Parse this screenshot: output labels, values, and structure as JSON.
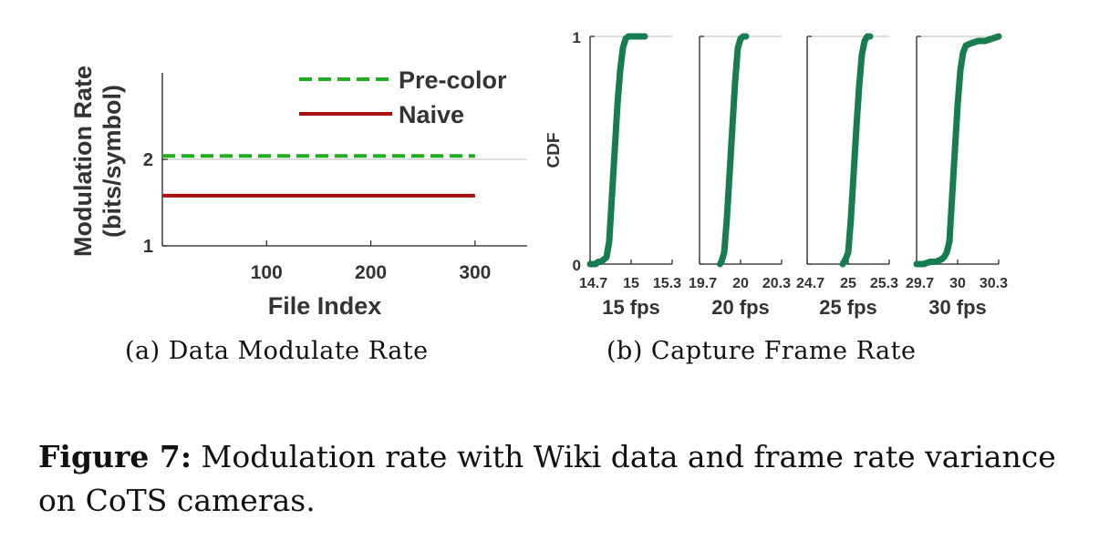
{
  "chart_data": [
    {
      "type": "line",
      "xlabel": "File Index",
      "ylabel_line1": "Modulation Rate",
      "ylabel_line2": "(bits/symbol)",
      "xlim": [
        0,
        350
      ],
      "ylim": [
        1,
        3
      ],
      "xticks": [
        100,
        200,
        300
      ],
      "yticks": [
        1,
        2
      ],
      "grid_y": [
        2
      ],
      "legend": "top-right",
      "series": [
        {
          "name": "Pre-color",
          "style": "dashed",
          "color": "#1fae1f",
          "x": [
            0,
            300
          ],
          "y": [
            2.04,
            2.04
          ]
        },
        {
          "name": "Naive",
          "style": "solid",
          "color": "#a80f0f",
          "x": [
            0,
            300
          ],
          "y": [
            1.58,
            1.58
          ]
        }
      ],
      "caption": "(a) Data Modulate Rate"
    },
    {
      "type": "line",
      "ylabel": "CDF",
      "ylim": [
        0,
        1
      ],
      "yticks": [
        0,
        1
      ],
      "color": "#187d4e",
      "panels": [
        {
          "label": "15 fps",
          "xlim": [
            14.7,
            15.3
          ],
          "xticks": [
            "14.7",
            "15",
            "15.3"
          ],
          "x": [
            14.7,
            14.72,
            14.74,
            14.76,
            14.78,
            14.8,
            14.82,
            14.84,
            14.86,
            14.88,
            14.9,
            14.92,
            14.94,
            14.96,
            14.98,
            15.0,
            15.02,
            15.05,
            15.1
          ],
          "y": [
            0.0,
            0.0,
            0.0,
            0.01,
            0.01,
            0.02,
            0.03,
            0.1,
            0.3,
            0.5,
            0.7,
            0.85,
            0.95,
            0.99,
            1.0,
            1.0,
            1.0,
            1.0,
            1.0
          ]
        },
        {
          "label": "20 fps",
          "xlim": [
            19.7,
            20.3
          ],
          "xticks": [
            "19.7",
            "20",
            "20.3"
          ],
          "x": [
            19.85,
            19.86,
            19.88,
            19.9,
            19.92,
            19.94,
            19.96,
            19.98,
            20.0,
            20.02,
            20.04
          ],
          "y": [
            0.0,
            0.01,
            0.05,
            0.2,
            0.4,
            0.6,
            0.8,
            0.95,
            0.99,
            1.0,
            1.0
          ]
        },
        {
          "label": "25 fps",
          "xlim": [
            24.7,
            25.3
          ],
          "xticks": [
            "24.7",
            "25",
            "25.3"
          ],
          "x": [
            24.96,
            24.98,
            25.0,
            25.02,
            25.04,
            25.06,
            25.08,
            25.1,
            25.12,
            25.14,
            25.16
          ],
          "y": [
            0.0,
            0.02,
            0.05,
            0.2,
            0.4,
            0.6,
            0.78,
            0.92,
            0.98,
            1.0,
            1.0
          ]
        },
        {
          "label": "30 fps",
          "xlim": [
            29.7,
            30.3
          ],
          "xticks": [
            "29.7",
            "30",
            "30.3"
          ],
          "x": [
            29.7,
            29.75,
            29.8,
            29.84,
            29.88,
            29.9,
            29.92,
            29.94,
            29.96,
            29.98,
            30.0,
            30.02,
            30.04,
            30.06,
            30.1,
            30.15,
            30.2,
            30.25,
            30.3
          ],
          "y": [
            0.0,
            0.0,
            0.01,
            0.01,
            0.02,
            0.03,
            0.05,
            0.1,
            0.3,
            0.5,
            0.7,
            0.85,
            0.93,
            0.96,
            0.97,
            0.98,
            0.98,
            0.99,
            1.0
          ]
        }
      ],
      "caption": "(b) Capture Frame Rate"
    }
  ],
  "figure_caption": {
    "label": "Figure 7:",
    "text": " Modulation rate with Wiki data and frame rate variance on CoTS cameras."
  }
}
